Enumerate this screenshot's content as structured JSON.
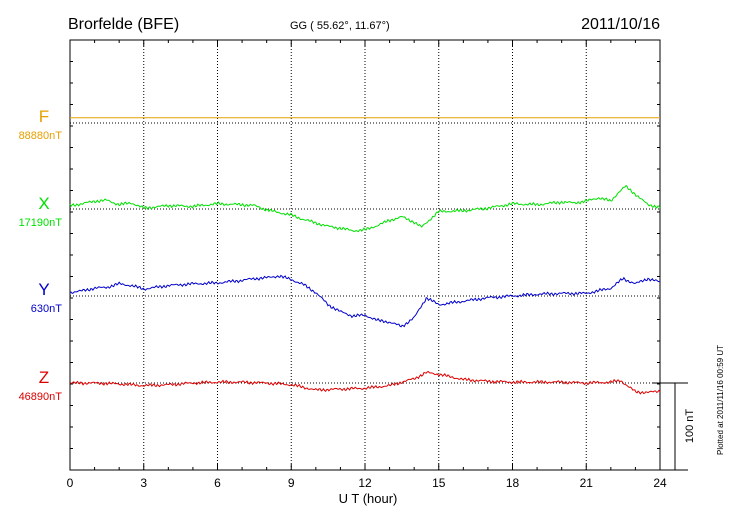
{
  "header": {
    "station": "Brorfelde (BFE)",
    "coords": "GG ( 55.62°,  11.67°)",
    "date": "2011/10/16"
  },
  "side_note": "Plotted at 2011/11/16 00:59 UT",
  "scale_label": "100 nT",
  "colors": {
    "F": "#e6a000",
    "X": "#00e000",
    "Y": "#0000cc",
    "Z": "#dd0000",
    "axis": "#000000"
  },
  "chart_data": {
    "type": "line",
    "xlabel": "U T (hour)",
    "xlim": [
      0,
      24
    ],
    "x_ticks": [
      "0",
      "3",
      "6",
      "9",
      "12",
      "15",
      "18",
      "21",
      "24"
    ],
    "grid": true,
    "scale_bar_nT": 100,
    "series": [
      {
        "name": "F",
        "baseline": "88880nT",
        "x": [
          0,
          24
        ],
        "y": [
          6,
          6
        ]
      },
      {
        "name": "X",
        "baseline": "17190nT",
        "x": [
          0,
          0.5,
          1,
          1.5,
          2,
          2.5,
          3,
          4,
          5,
          6,
          7,
          7.5,
          8,
          8.5,
          9,
          9.5,
          10,
          10.5,
          11,
          11.5,
          12,
          12.5,
          13,
          13.5,
          14,
          14.3,
          14.6,
          15,
          16,
          17,
          18,
          19,
          20,
          20.5,
          21,
          21.5,
          22,
          22.3,
          22.6,
          23,
          23.5,
          24
        ],
        "y": [
          4,
          6,
          9,
          10,
          5,
          7,
          1,
          4,
          3,
          6,
          5,
          4,
          -1,
          -4,
          -7,
          -12,
          -16,
          -20,
          -22,
          -25,
          -24,
          -19,
          -13,
          -9,
          -15,
          -21,
          -13,
          -3,
          -2,
          1,
          6,
          5,
          8,
          7,
          9,
          13,
          9,
          19,
          26,
          17,
          5,
          2
        ]
      },
      {
        "name": "Y",
        "baseline": "630nT",
        "x": [
          0,
          0.5,
          1,
          1.5,
          2,
          2.5,
          3,
          4,
          5,
          6,
          7,
          7.5,
          8,
          8.5,
          9,
          9.5,
          10,
          10.5,
          11,
          11.5,
          12,
          12.5,
          13,
          13.5,
          14,
          14.5,
          15,
          16,
          17,
          18,
          19,
          20,
          21,
          21.5,
          22,
          22.5,
          23,
          23.5,
          24
        ],
        "y": [
          4,
          6,
          9,
          10,
          14,
          12,
          8,
          12,
          14,
          15,
          18,
          20,
          21,
          23,
          19,
          13,
          4,
          -10,
          -18,
          -23,
          -22,
          -28,
          -30,
          -35,
          -25,
          -2,
          -10,
          -6,
          -2,
          0,
          2,
          3,
          3,
          6,
          9,
          20,
          14,
          20,
          16
        ]
      },
      {
        "name": "Z",
        "baseline": "46890nT",
        "x": [
          0,
          1,
          2,
          3,
          4,
          5,
          6,
          7,
          8,
          9,
          9.5,
          10,
          11,
          12,
          13,
          14,
          14.5,
          15,
          16,
          17,
          18,
          19,
          20,
          21,
          22,
          22.4,
          22.7,
          23,
          23.5,
          24
        ],
        "y": [
          0,
          0,
          -1,
          -3,
          -2,
          0,
          1,
          1,
          0,
          -2,
          -5,
          -8,
          -7,
          -6,
          -3,
          5,
          12,
          10,
          4,
          2,
          1,
          1,
          1,
          0,
          1,
          3,
          -4,
          -10,
          -11,
          -9
        ]
      }
    ]
  }
}
